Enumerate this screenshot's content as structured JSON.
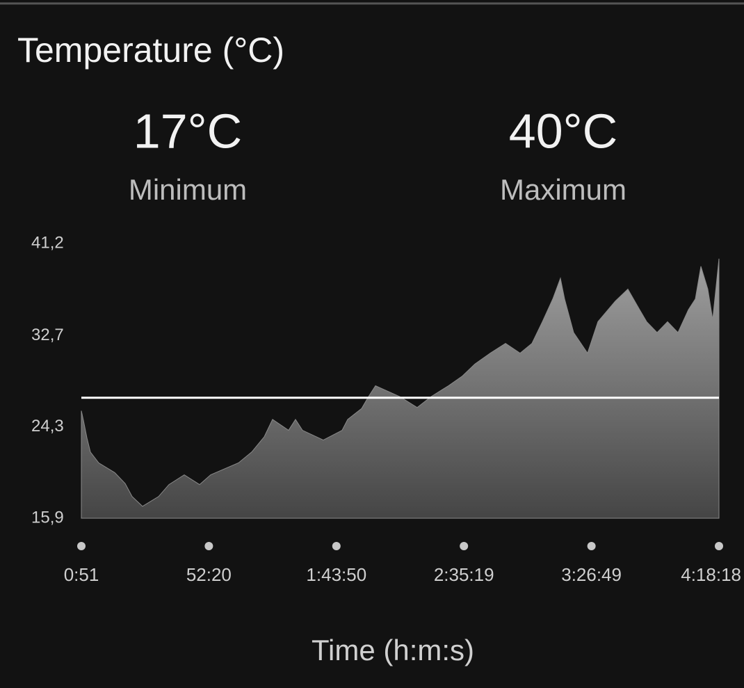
{
  "chart_data": {
    "type": "area",
    "title": "Temperature (°C)",
    "stats": [
      {
        "value": "17°C",
        "label": "Minimum"
      },
      {
        "value": "40°C",
        "label": "Maximum"
      }
    ],
    "x_label": "Time (h:m:s)",
    "xlim": [
      51,
      15498
    ],
    "xticks": [
      {
        "value": 51,
        "label": "0:51"
      },
      {
        "value": 3140,
        "label": "52:20"
      },
      {
        "value": 6230,
        "label": "1:43:50"
      },
      {
        "value": 9319,
        "label": "2:35:19"
      },
      {
        "value": 12409,
        "label": "3:26:49"
      },
      {
        "value": 15498,
        "label": "4:18:18"
      }
    ],
    "ylim": [
      15.9,
      41.2
    ],
    "yticks": [
      {
        "value": 15.9,
        "label": "15,9"
      },
      {
        "value": 24.3,
        "label": "24,3"
      },
      {
        "value": 32.7,
        "label": "32,7"
      },
      {
        "value": 41.2,
        "label": "41,2"
      }
    ],
    "average": 27.0,
    "average_color": "#ffffff",
    "x": [
      51,
      102,
      186,
      270,
      472,
      860,
      1112,
      1281,
      1533,
      1921,
      2173,
      2544,
      2915,
      3184,
      3858,
      4178,
      4481,
      4683,
      5071,
      5239,
      5408,
      5913,
      6368,
      6503,
      6840,
      7008,
      7177,
      7766,
      8187,
      8524,
      8945,
      9282,
      9585,
      9956,
      10327,
      10680,
      10967,
      11220,
      11472,
      11657,
      11758,
      11977,
      12314,
      12566,
      12988,
      13291,
      13577,
      13746,
      13999,
      14252,
      14504,
      14757,
      14926,
      15060,
      15228,
      15346,
      15498
    ],
    "series": [
      {
        "color": "#8a8a8a",
        "values": [
          25.8,
          24.9,
          23.3,
          22.0,
          21.0,
          20.1,
          19.1,
          17.9,
          17.0,
          17.9,
          19.0,
          19.9,
          19.0,
          19.9,
          21.0,
          22.0,
          23.4,
          25.0,
          24.0,
          25.0,
          24.0,
          23.1,
          24.0,
          25.0,
          26.0,
          27.1,
          28.1,
          27.1,
          26.1,
          27.1,
          28.1,
          29.0,
          30.1,
          31.1,
          32.0,
          31.1,
          32.0,
          34.0,
          36.1,
          38.0,
          36.1,
          33.0,
          31.1,
          34.0,
          35.9,
          37.0,
          35.1,
          34.0,
          33.0,
          34.0,
          33.0,
          35.1,
          36.1,
          39.1,
          37.0,
          34.2,
          39.8
        ]
      }
    ]
  }
}
